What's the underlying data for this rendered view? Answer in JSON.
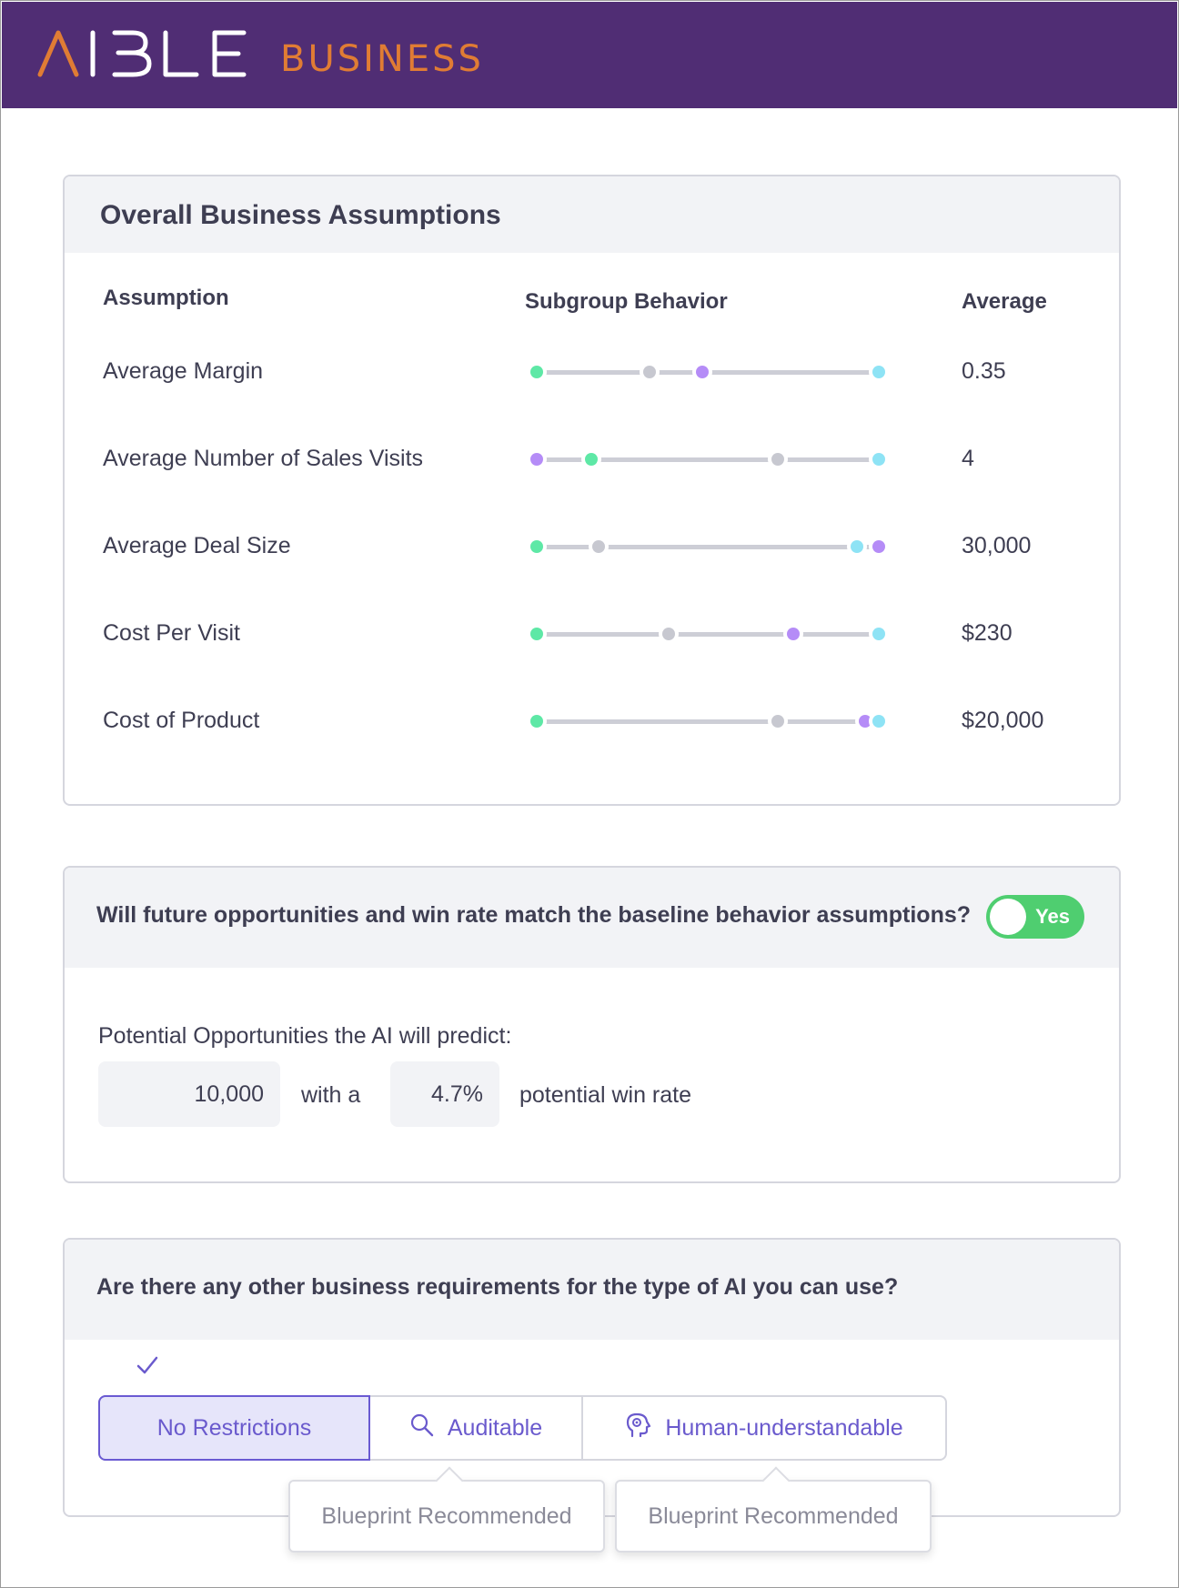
{
  "brand": {
    "primary": "#502d74",
    "logo_mark": "AIBLE",
    "logo_word": "BUSINESS"
  },
  "assumptions": {
    "title": "Overall Business Assumptions",
    "columns": {
      "assumption": "Assumption",
      "behavior": "Subgroup Behavior",
      "average": "Average"
    },
    "dot_colors": {
      "green": "#5ee8a6",
      "gray": "#c7c8d0",
      "purple": "#b58cf7",
      "cyan": "#8ee3f5"
    },
    "rows": [
      {
        "label": "Average Margin",
        "average": "0.35",
        "dots": [
          {
            "color": "green",
            "pos": 0.0
          },
          {
            "color": "gray",
            "pos": 0.33
          },
          {
            "color": "purple",
            "pos": 0.485
          },
          {
            "color": "cyan",
            "pos": 1.0
          }
        ]
      },
      {
        "label": "Average Number of Sales Visits",
        "average": "4",
        "dots": [
          {
            "color": "purple",
            "pos": 0.0
          },
          {
            "color": "green",
            "pos": 0.16
          },
          {
            "color": "gray",
            "pos": 0.705
          },
          {
            "color": "cyan",
            "pos": 1.0
          }
        ]
      },
      {
        "label": "Average Deal Size",
        "average": "30,000",
        "dots": [
          {
            "color": "green",
            "pos": 0.0
          },
          {
            "color": "gray",
            "pos": 0.18
          },
          {
            "color": "cyan",
            "pos": 0.935
          },
          {
            "color": "purple",
            "pos": 1.0
          }
        ]
      },
      {
        "label": "Cost Per Visit",
        "average": "$230",
        "dots": [
          {
            "color": "green",
            "pos": 0.0
          },
          {
            "color": "gray",
            "pos": 0.385
          },
          {
            "color": "purple",
            "pos": 0.75
          },
          {
            "color": "cyan",
            "pos": 1.0
          }
        ]
      },
      {
        "label": "Cost of Product",
        "average": "$20,000",
        "dots": [
          {
            "color": "green",
            "pos": 0.0
          },
          {
            "color": "gray",
            "pos": 0.705
          },
          {
            "color": "purple",
            "pos": 0.96
          },
          {
            "color": "cyan",
            "pos": 1.0
          }
        ]
      }
    ]
  },
  "baseline": {
    "question": "Will future opportunities and win rate match the baseline behavior assumptions?",
    "toggle_label": "Yes",
    "toggle_on": true,
    "predict_label": "Potential Opportunities the AI will predict:",
    "opportunities_value": "10,000",
    "with_a": "with a",
    "win_rate_value": "4.7%",
    "win_rate_suffix": "potential win rate"
  },
  "requirements": {
    "question": "Are there any other business requirements for the type of AI you can use?",
    "options": [
      {
        "label": "No Restrictions",
        "icon": "check-icon",
        "selected": true
      },
      {
        "label": "Auditable",
        "icon": "search-icon",
        "selected": false
      },
      {
        "label": "Human-understandable",
        "icon": "head-gears-icon",
        "selected": false
      }
    ],
    "tooltips": [
      "Blueprint Recommended",
      "Blueprint Recommended"
    ]
  }
}
